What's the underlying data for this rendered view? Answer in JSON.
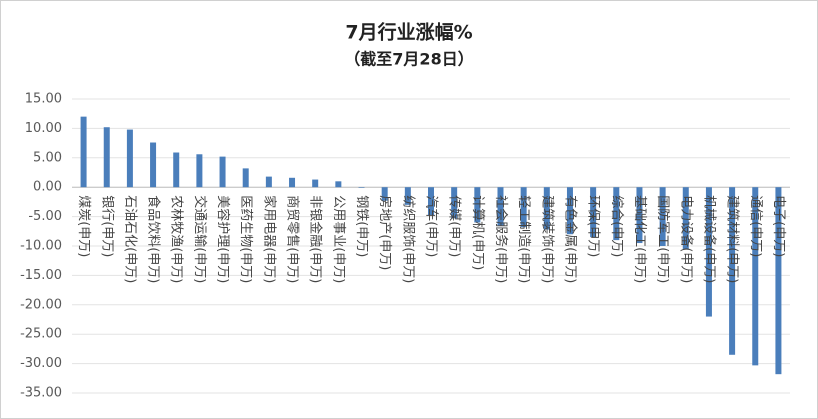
{
  "chart_data": {
    "type": "bar",
    "title": "7月行业涨幅%",
    "subtitle": "（截至7月28日）",
    "categories": [
      "煤炭(申万)",
      "银行(申万)",
      "石油石化(申万)",
      "食品饮料(申万)",
      "农林牧渔(申万)",
      "交通运输(申万)",
      "美容护理(申万)",
      "医药生物(申万)",
      "家用电器(申万)",
      "商贸零售(申万)",
      "非银金融(申万)",
      "公用事业(申万)",
      "钢铁(申万)",
      "房地产(申万)",
      "纺织服饰(申万)",
      "汽车(申万)",
      "传媒(申万)",
      "计算机(申万)",
      "社会服务(申万)",
      "轻工制造(申万)",
      "建筑装饰(申万)",
      "有色金属(申万)",
      "环保(申万)",
      "综合(申万)",
      "基础化工(申万)",
      "国防军工(申万)",
      "电力设备(申万)",
      "机械设备(申万)",
      "建筑材料(申万)",
      "通信(申万)",
      "电子(申万)"
    ],
    "values": [
      12.0,
      10.2,
      9.8,
      7.6,
      5.9,
      5.6,
      5.2,
      3.2,
      1.8,
      1.6,
      1.3,
      1.0,
      -0.1,
      -2.3,
      -3.0,
      -4.8,
      -5.3,
      -6.0,
      -6.5,
      -6.8,
      -7.2,
      -8.0,
      -8.5,
      -9.0,
      -9.5,
      -10.0,
      -10.5,
      -22.0,
      -28.5,
      -30.3,
      -31.8
    ],
    "color": "#4a7ebb",
    "ylim": [
      -35,
      15
    ],
    "yticks": [
      {
        "value": -35,
        "label": "-35.00"
      },
      {
        "value": -30,
        "label": "-30.00"
      },
      {
        "value": -25,
        "label": "-25.00"
      },
      {
        "value": -20,
        "label": "-20.00"
      },
      {
        "value": -15,
        "label": "-15.00"
      },
      {
        "value": -10,
        "label": "-10.00"
      },
      {
        "value": -5,
        "label": "-5.00"
      },
      {
        "value": 0,
        "label": "0.00"
      },
      {
        "value": 5,
        "label": "5.00"
      },
      {
        "value": 10,
        "label": "10.00"
      },
      {
        "value": 15,
        "label": "15.00"
      }
    ],
    "grid": true
  }
}
